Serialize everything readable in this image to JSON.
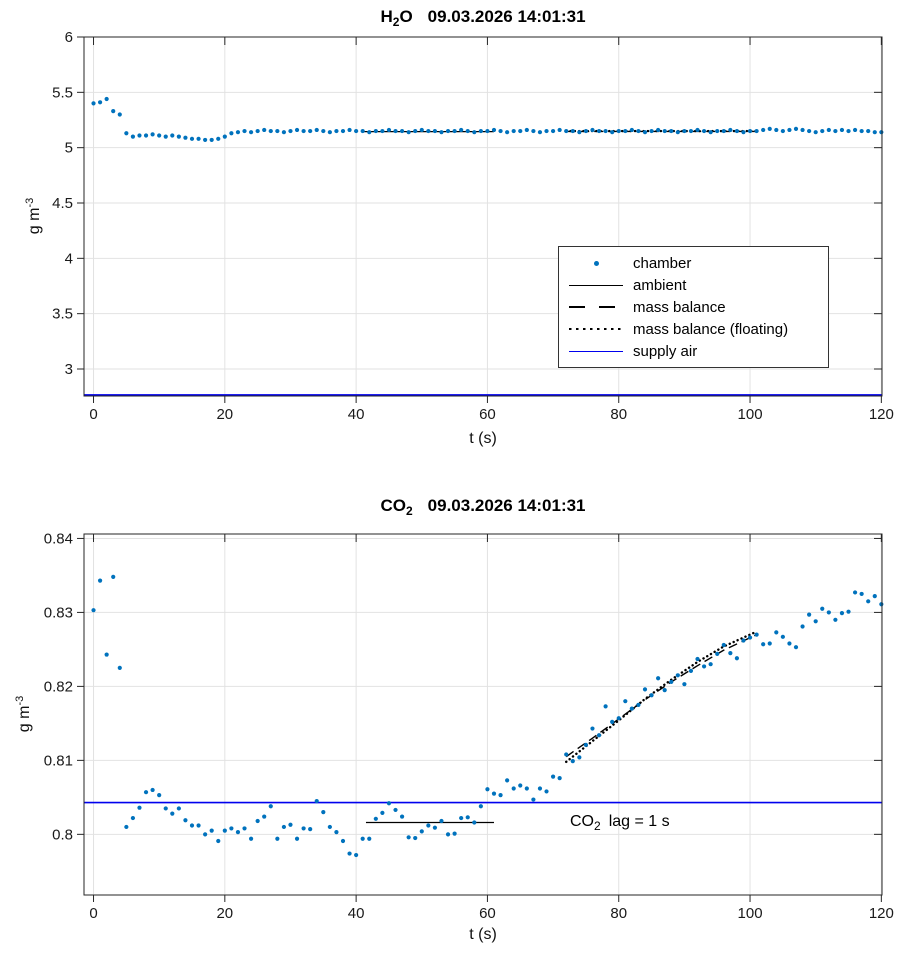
{
  "figure": {
    "background": "#ffffff",
    "marker_color": "#0072BD",
    "supply_air_color": "#0000ee",
    "grid_color": "#e2e2e2",
    "axis_color": "#262626",
    "text_color": "#1a1a1a"
  },
  "legend": {
    "position": "inside upper right of H2O plot",
    "entries": [
      {
        "label": "chamber",
        "marker": "blue-dot"
      },
      {
        "label": "ambient",
        "marker": "black-solid-line"
      },
      {
        "label": "mass balance",
        "marker": "black-dashed-line"
      },
      {
        "label": "mass balance (floating)",
        "marker": "black-dotted-line"
      },
      {
        "label": "supply air",
        "marker": "blue-solid-line"
      }
    ]
  },
  "chart_data": [
    {
      "type": "scatter",
      "title": "H2O  09.03.2026 14:01:31",
      "title_parts": {
        "main": "H",
        "sub": "2",
        "end": "O",
        "datetime": "09.03.2026 14:01:31"
      },
      "xlabel": "t (s)",
      "ylabel": "g m^-3",
      "ylabel_parts": {
        "main": "g m",
        "sup": "-3"
      },
      "xlim": [
        -1.45,
        120.1
      ],
      "ylim": [
        2.756,
        6.0
      ],
      "xticks": [
        0,
        20,
        40,
        60,
        80,
        100,
        120
      ],
      "yticks": [
        3,
        3.5,
        4,
        4.5,
        5,
        5.5,
        6
      ],
      "ytick_labels": [
        "3",
        "3.5",
        "4",
        "4.5",
        "5",
        "5.5",
        "6"
      ],
      "grid": true,
      "x_start": 0,
      "x_step": 1,
      "series": [
        {
          "name": "chamber",
          "style": "scatter",
          "color": "#0072BD",
          "values": [
            5.4,
            5.41,
            5.44,
            5.33,
            5.3,
            5.13,
            5.1,
            5.11,
            5.11,
            5.12,
            5.11,
            5.1,
            5.11,
            5.1,
            5.09,
            5.08,
            5.08,
            5.07,
            5.07,
            5.08,
            5.1,
            5.13,
            5.14,
            5.15,
            5.14,
            5.15,
            5.16,
            5.15,
            5.15,
            5.14,
            5.15,
            5.16,
            5.15,
            5.15,
            5.16,
            5.15,
            5.14,
            5.15,
            5.15,
            5.16,
            5.15,
            5.15,
            5.14,
            5.15,
            5.15,
            5.16,
            5.15,
            5.15,
            5.14,
            5.15,
            5.16,
            5.15,
            5.15,
            5.14,
            5.15,
            5.15,
            5.16,
            5.15,
            5.14,
            5.15,
            5.15,
            5.16,
            5.15,
            5.14,
            5.15,
            5.15,
            5.16,
            5.15,
            5.14,
            5.15,
            5.15,
            5.16,
            5.15,
            5.15,
            5.14,
            5.15,
            5.16,
            5.15,
            5.15,
            5.14,
            5.15,
            5.15,
            5.16,
            5.15,
            5.14,
            5.15,
            5.16,
            5.15,
            5.15,
            5.14,
            5.15,
            5.15,
            5.16,
            5.15,
            5.14,
            5.15,
            5.15,
            5.16,
            5.15,
            5.14,
            5.15,
            5.15,
            5.16,
            5.17,
            5.16,
            5.15,
            5.16,
            5.17,
            5.16,
            5.15,
            5.14,
            5.15,
            5.16,
            5.15,
            5.16,
            5.15,
            5.16,
            5.15,
            5.15,
            5.14,
            5.14
          ]
        },
        {
          "name": "ambient",
          "style": "solid",
          "color": "#000000",
          "points": [
            [
              41,
              5.145
            ],
            [
              61,
              5.145
            ]
          ]
        },
        {
          "name": "mass balance",
          "style": "dashed",
          "color": "#000000",
          "points": [
            [
              72,
              5.147
            ],
            [
              101,
              5.147
            ]
          ]
        },
        {
          "name": "mass balance (floating)",
          "style": "dotted",
          "color": "#000000",
          "points": [
            [
              72,
              5.15
            ],
            [
              101,
              5.15
            ]
          ]
        },
        {
          "name": "supply air",
          "style": "solid",
          "color": "#0000ee",
          "points": [
            [
              -1.45,
              2.766
            ],
            [
              120.1,
              2.766
            ]
          ]
        }
      ]
    },
    {
      "type": "scatter",
      "title": "CO2  09.03.2026 14:01:31",
      "title_parts": {
        "main": "CO",
        "sub": "2",
        "end": "",
        "datetime": "09.03.2026 14:01:31"
      },
      "xlabel": "t (s)",
      "ylabel": "g m^-3",
      "ylabel_parts": {
        "main": "g m",
        "sup": "-3"
      },
      "xlim": [
        -1.45,
        120.1
      ],
      "ylim": [
        0.7918,
        0.8406
      ],
      "xticks": [
        0,
        20,
        40,
        60,
        80,
        100,
        120
      ],
      "yticks": [
        0.8,
        0.81,
        0.82,
        0.83,
        0.84
      ],
      "ytick_labels": [
        "0.8",
        "0.81",
        "0.82",
        "0.83",
        "0.84"
      ],
      "grid": true,
      "x_start": 0,
      "x_step": 1,
      "annotation": {
        "main": "CO",
        "sub": "2",
        "rest": "lag = 1 s",
        "t": 72,
        "y": 0.801
      },
      "series": [
        {
          "name": "chamber",
          "style": "scatter",
          "color": "#0072BD",
          "values": [
            0.8303,
            0.8343,
            0.8243,
            0.8348,
            0.8225,
            0.801,
            0.8022,
            0.8036,
            0.8057,
            0.806,
            0.8053,
            0.8035,
            0.8028,
            0.8035,
            0.8019,
            0.8012,
            0.8012,
            0.8,
            0.8005,
            0.7991,
            0.8005,
            0.8008,
            0.8003,
            0.8008,
            0.7994,
            0.8018,
            0.8024,
            0.8038,
            0.7994,
            0.801,
            0.8013,
            0.7994,
            0.8008,
            0.8007,
            0.8045,
            0.803,
            0.801,
            0.8003,
            0.7991,
            0.7974,
            0.7972,
            0.7994,
            0.7994,
            0.8021,
            0.8029,
            0.8042,
            0.8033,
            0.8024,
            0.7996,
            0.7995,
            0.8004,
            0.8012,
            0.8009,
            0.8018,
            0.8,
            0.8001,
            0.8022,
            0.8023,
            0.8016,
            0.8038,
            0.8061,
            0.8055,
            0.8053,
            0.8073,
            0.8062,
            0.8066,
            0.8062,
            0.8047,
            0.8062,
            0.8058,
            0.8078,
            0.8076,
            0.8108,
            0.8099,
            0.8104,
            0.8121,
            0.8143,
            0.8134,
            0.8173,
            0.8152,
            0.8157,
            0.818,
            0.817,
            0.8175,
            0.8196,
            0.8188,
            0.8211,
            0.8195,
            0.8206,
            0.8215,
            0.8203,
            0.8221,
            0.8237,
            0.8227,
            0.823,
            0.8244,
            0.8256,
            0.8245,
            0.8238,
            0.8262,
            0.8266,
            0.827,
            0.8257,
            0.8258,
            0.8273,
            0.8267,
            0.8258,
            0.8253,
            0.8281,
            0.8297,
            0.8288,
            0.8305,
            0.83,
            0.829,
            0.8299,
            0.8301,
            0.8327,
            0.8325,
            0.8315,
            0.8322,
            0.8311
          ]
        },
        {
          "name": "ambient",
          "style": "solid",
          "color": "#000000",
          "points": [
            [
              41.5,
              0.8016
            ],
            [
              61,
              0.8016
            ]
          ]
        },
        {
          "name": "mass balance",
          "style": "dashed",
          "color": "#000000",
          "points": [
            [
              72,
              0.8105
            ],
            [
              76,
              0.813
            ],
            [
              80,
              0.8156
            ],
            [
              84,
              0.8182
            ],
            [
              88,
              0.8206
            ],
            [
              92,
              0.8228
            ],
            [
              96,
              0.8249
            ],
            [
              101,
              0.827
            ]
          ]
        },
        {
          "name": "mass balance (floating)",
          "style": "dotted",
          "color": "#000000",
          "points": [
            [
              72,
              0.8098
            ],
            [
              76,
              0.8126
            ],
            [
              80,
              0.8154
            ],
            [
              84,
              0.8183
            ],
            [
              88,
              0.8209
            ],
            [
              92,
              0.8233
            ],
            [
              96,
              0.8254
            ],
            [
              101,
              0.8274
            ]
          ]
        },
        {
          "name": "supply air",
          "style": "solid",
          "color": "#0000ee",
          "points": [
            [
              -1.45,
              0.8043
            ],
            [
              120.1,
              0.8043
            ]
          ]
        }
      ]
    }
  ]
}
